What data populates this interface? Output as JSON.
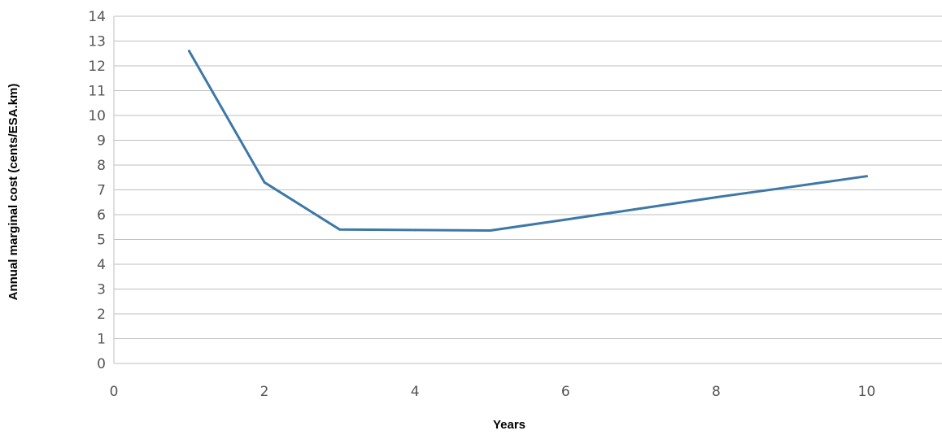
{
  "chart_data": {
    "type": "line",
    "xlabel": "Years",
    "ylabel": "Annual marginal cost (cents/ESA.km)",
    "xlim": [
      0,
      11
    ],
    "ylim": [
      0,
      14
    ],
    "xticks": [
      0,
      2,
      4,
      6,
      8,
      10
    ],
    "yticks": [
      0,
      1,
      2,
      3,
      4,
      5,
      6,
      7,
      8,
      9,
      10,
      11,
      12,
      13,
      14
    ],
    "grid": "horizontal",
    "series": [
      {
        "color": "#3d78a8",
        "points": [
          {
            "x": 1,
            "y": 12.6
          },
          {
            "x": 2,
            "y": 7.3
          },
          {
            "x": 3,
            "y": 5.4
          },
          {
            "x": 4,
            "y": 5.38
          },
          {
            "x": 5,
            "y": 5.36
          },
          {
            "x": 6,
            "y": 5.8
          },
          {
            "x": 7,
            "y": 6.25
          },
          {
            "x": 8,
            "y": 6.7
          },
          {
            "x": 9,
            "y": 7.12
          },
          {
            "x": 10,
            "y": 7.55
          }
        ]
      }
    ]
  }
}
